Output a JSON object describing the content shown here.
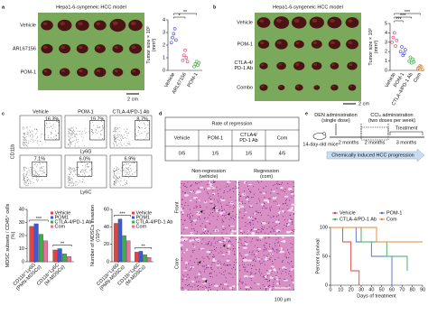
{
  "panel_labels": [
    "a",
    "b",
    "c",
    "d",
    "e"
  ],
  "panel_a": {
    "title": "Hepa1-6-syngeneic HCC model",
    "rows": [
      "Vehicle",
      "ARL67156",
      "POM-1"
    ],
    "scale_bar": "2 cm"
  },
  "panel_b": {
    "title": "Hepa1-6-syngeneic HCC model",
    "rows": [
      "Vehicle",
      "POM-1",
      "CTLA-4/PD-1 Ab",
      "Combo"
    ],
    "scale_bar": "2 cm"
  },
  "panel_c": {
    "columns": [
      "Vehicle",
      "POM-1",
      "CTLA-4/PD-1 Ab"
    ],
    "gates": [
      [
        "16.3%",
        "19.7%",
        "8.7%"
      ],
      [
        "7.1%",
        "6.0%",
        "6.9%"
      ]
    ],
    "x_labels": [
      "Ly6G",
      "Ly6C"
    ],
    "y_label": "CD11b"
  },
  "panel_d": {
    "table": {
      "title": "Rate of regression",
      "columns": [
        "Vehicle",
        "POM-1",
        "CTLA4/PD-1 Ab",
        "Com"
      ],
      "values": [
        "0/5",
        "1/5",
        "1/5",
        "4/5"
      ]
    },
    "images": {
      "columns": [
        "Non-regression (vehicle)",
        "Regression (com)"
      ],
      "rows": [
        "Front",
        "Core"
      ],
      "scale_bar": "100 μm"
    }
  },
  "panel_e": {
    "steps": [
      "DEN administration (single dose)",
      "CCl₄ administration (two doses per week)"
    ],
    "mouse": "14-day-old mice",
    "durations": [
      "2 months",
      "2 months",
      "3 months"
    ],
    "treatment": "Treatment",
    "caption": "Chemically induced HCC progression"
  },
  "chart_data": [
    {
      "type": "dot",
      "ylabel": "Tumor size × 10³ (mm³)",
      "categories": [
        "Vehicle",
        "ARL67156",
        "POM-1"
      ],
      "values": [
        [
          2.2,
          2.6,
          2.9,
          3.3,
          2.4
        ],
        [
          0.8,
          1.2,
          1.6,
          1.0,
          0.7
        ],
        [
          0.3,
          0.5,
          0.7,
          0.4,
          0.6
        ]
      ],
      "colors": [
        "#5a5fc8",
        "#e0507a",
        "#4caf50"
      ],
      "ylim": [
        0,
        4
      ],
      "yticks": [
        0,
        1,
        2,
        3,
        4
      ],
      "annotations": [
        "*",
        "**"
      ]
    },
    {
      "type": "dot",
      "ylabel": "Tumor size × 10³ (mm³)",
      "categories": [
        "Vehicle",
        "POM-1",
        "CTLA-4/PD-1 Ab",
        "Com"
      ],
      "values": [
        [
          3.0,
          3.5,
          4.0,
          2.6,
          3.2
        ],
        [
          2.0,
          2.5,
          1.6,
          1.8,
          2.2
        ],
        [
          1.0,
          1.4,
          0.8,
          1.2,
          0.9
        ],
        [
          0.2,
          0.3,
          0.5,
          0.4,
          0.1
        ]
      ],
      "colors": [
        "#e0507a",
        "#5a5fc8",
        "#4caf50",
        "#e58a2c"
      ],
      "ylim": [
        0,
        5
      ],
      "yticks": [
        0,
        1,
        2,
        3,
        4,
        5
      ],
      "annotations": [
        "***",
        "***",
        "***"
      ]
    },
    {
      "type": "bar",
      "ylabel": "MDSC subsets / CD45⁺ cells (%)",
      "categories": [
        "CD11b⁺Ly6G⁺ (PMN-MDSCs)",
        "CD11b⁺Ly6C⁺ (M-MDSCs)"
      ],
      "series": [
        {
          "name": "Vehicle",
          "color": "#e8413e",
          "values": [
            27,
            9
          ]
        },
        {
          "name": "POM1",
          "color": "#3b5bd6",
          "values": [
            29,
            10
          ]
        },
        {
          "name": "CTLA-4/PD-1 Ab",
          "color": "#3fae49",
          "values": [
            21,
            6
          ]
        },
        {
          "name": "Com",
          "color": "#f06fa0",
          "values": [
            16,
            4
          ]
        }
      ],
      "ylim": [
        0,
        40
      ],
      "yticks": [
        0,
        10,
        20,
        30,
        40
      ],
      "annotations": [
        "***",
        "**"
      ]
    },
    {
      "type": "bar",
      "ylabel": "Number of MDSCs invasion (/10⁴)",
      "categories": [
        "CD11b⁺Ly6G⁺ (PMN-MDSCs)",
        "CD11b⁺Ly6C⁺ (M-MDSCs)"
      ],
      "series": [
        {
          "name": "Vehicle",
          "color": "#e8413e",
          "values": [
            44,
            11
          ]
        },
        {
          "name": "POM1",
          "color": "#3b5bd6",
          "values": [
            49,
            12
          ]
        },
        {
          "name": "CTLA-4/PD-1 Ab",
          "color": "#3fae49",
          "values": [
            30,
            8
          ]
        },
        {
          "name": "Com",
          "color": "#f06fa0",
          "values": [
            24,
            5
          ]
        }
      ],
      "ylim": [
        0,
        60
      ],
      "yticks": [
        0,
        20,
        40,
        60
      ],
      "annotations": [
        "***",
        "**"
      ]
    },
    {
      "type": "line",
      "ylabel": "Percent survival",
      "xlabel": "Days of treatment",
      "series": [
        {
          "name": "Vehicle",
          "color": "#e0413c",
          "x": [
            0,
            12,
            20,
            28
          ],
          "values": [
            100,
            75,
            25,
            0
          ]
        },
        {
          "name": "POM-1",
          "color": "#4c6fd1",
          "x": [
            0,
            25,
            40,
            60
          ],
          "values": [
            100,
            75,
            50,
            0
          ]
        },
        {
          "name": "CTLA-4/PD-1 Ab",
          "color": "#3cae5a",
          "x": [
            0,
            30,
            55,
            75
          ],
          "values": [
            100,
            75,
            50,
            25
          ]
        },
        {
          "name": "Com",
          "color": "#e58a2c",
          "x": [
            0,
            45,
            90
          ],
          "values": [
            100,
            75,
            75
          ]
        }
      ],
      "xlim": [
        0,
        90
      ],
      "xticks": [
        0,
        10,
        20,
        30,
        40,
        50,
        60,
        70,
        80,
        90
      ],
      "ylim": [
        0,
        100
      ],
      "yticks": [
        0,
        50,
        100
      ]
    }
  ]
}
